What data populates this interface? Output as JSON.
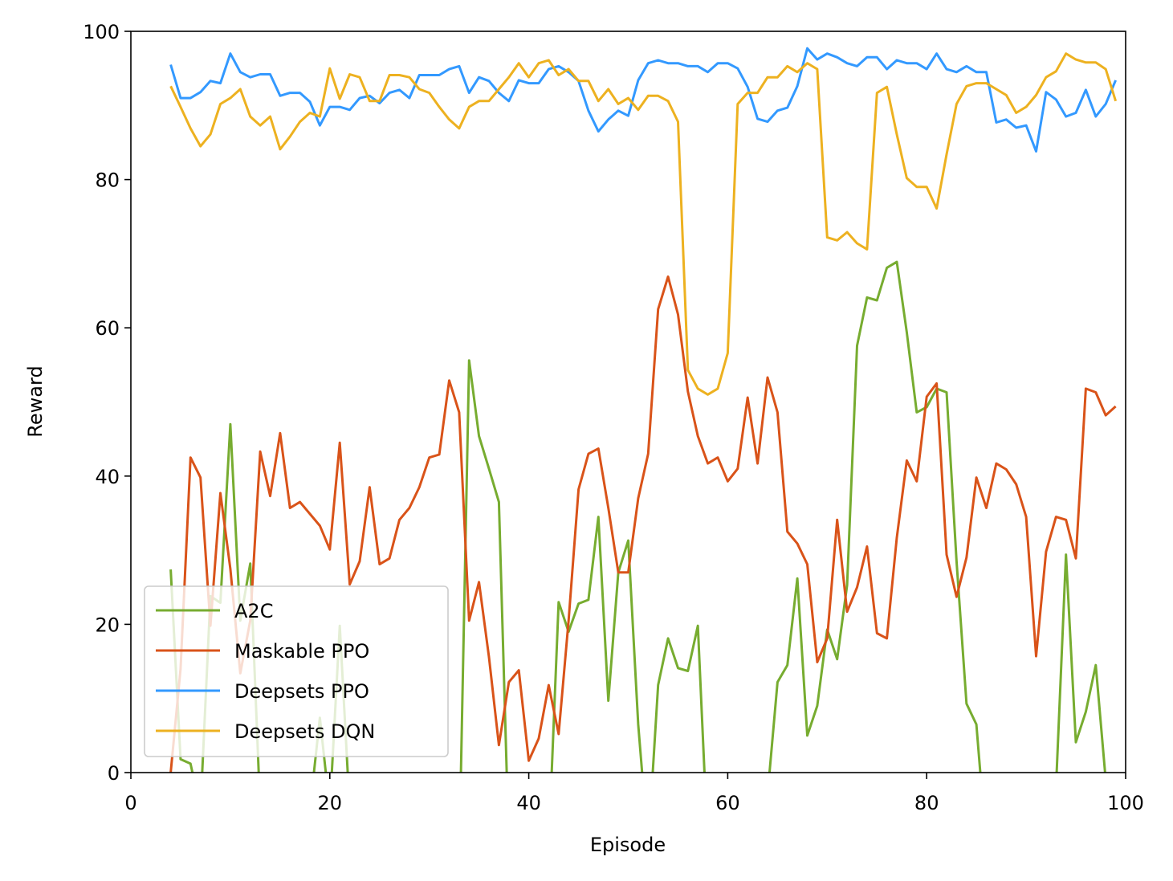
{
  "chart_data": {
    "type": "line",
    "xlabel": "Episode",
    "ylabel": "Reward",
    "xlim": [
      0,
      100
    ],
    "ylim": [
      0,
      100
    ],
    "xticks": [
      0,
      20,
      40,
      60,
      80,
      100
    ],
    "yticks": [
      0,
      20,
      40,
      60,
      80,
      100
    ],
    "legend": "lower left",
    "x": [
      4,
      5,
      6,
      7,
      8,
      9,
      10,
      11,
      12,
      13,
      14,
      15,
      16,
      17,
      18,
      19,
      20,
      21,
      22,
      23,
      24,
      25,
      26,
      27,
      28,
      29,
      30,
      31,
      32,
      33,
      34,
      35,
      36,
      37,
      38,
      39,
      40,
      41,
      42,
      43,
      44,
      45,
      46,
      47,
      48,
      49,
      50,
      51,
      52,
      53,
      54,
      55,
      56,
      57,
      58,
      59,
      60,
      61,
      62,
      63,
      64,
      65,
      66,
      67,
      68,
      69,
      70,
      71,
      72,
      73,
      74,
      75,
      76,
      77,
      78,
      79,
      80,
      81,
      82,
      83,
      84,
      85,
      86,
      87,
      88,
      89,
      90,
      91,
      92,
      93,
      94,
      95,
      96,
      97,
      98,
      99
    ],
    "series": [
      {
        "name": "A2C",
        "color": "#77ac30",
        "values": [
          27.4,
          1.8,
          1.2,
          -5,
          23.8,
          22.9,
          47,
          20.5,
          28.2,
          -5,
          -5,
          -5,
          -5,
          -5,
          -5,
          7.4,
          -5,
          19.8,
          -5,
          -5,
          -5,
          -5,
          -5,
          -5,
          -5,
          -5,
          -5,
          -5,
          -5,
          -12,
          55.6,
          45.4,
          41,
          36.5,
          -10,
          -10,
          -10,
          -10,
          -10,
          23,
          19,
          22.8,
          23.3,
          34.5,
          9.7,
          27,
          31.3,
          6.5,
          -10,
          11.8,
          18.1,
          14.1,
          13.7,
          19.8,
          -10,
          -10,
          -10,
          -10,
          -10,
          -10,
          -3,
          12.2,
          14.5,
          26.2,
          5,
          9,
          19.3,
          15.3,
          25.3,
          57.6,
          64.1,
          63.7,
          68.1,
          68.9,
          59.4,
          48.6,
          49.3,
          51.8,
          51.3,
          28.5,
          9.3,
          6.5,
          -10,
          -10,
          -10,
          -10,
          -10,
          -10,
          -10,
          -2,
          29.4,
          4.1,
          8.2,
          14.5,
          -1,
          null
        ]
      },
      {
        "name": "Maskable PPO",
        "color": "#d95319",
        "values": [
          0,
          14,
          42.5,
          39.8,
          19.8,
          37.7,
          27.5,
          13.4,
          20.5,
          43.3,
          37.3,
          45.8,
          35.7,
          36.5,
          34.9,
          33.3,
          30.1,
          44.5,
          25.4,
          28.5,
          38.5,
          28.1,
          28.9,
          34.1,
          35.7,
          38.5,
          42.5,
          42.9,
          52.9,
          48.6,
          20.5,
          25.7,
          15.6,
          3.7,
          12.2,
          13.8,
          1.6,
          4.6,
          11.8,
          5.2,
          20.5,
          38.2,
          43,
          43.7,
          35.7,
          27,
          27,
          37,
          43,
          62.5,
          66.9,
          61.8,
          51.4,
          45.4,
          41.7,
          42.5,
          39.3,
          41,
          50.6,
          41.7,
          53.3,
          48.6,
          32.5,
          30.9,
          28.1,
          14.9,
          18.1,
          34.1,
          21.7,
          25,
          30.5,
          18.8,
          18.1,
          31.7,
          42.1,
          39.3,
          50.7,
          52.5,
          29.4,
          23.7,
          29,
          39.8,
          35.7,
          41.7,
          40.9,
          38.9,
          34.5,
          15.7,
          29.8,
          34.5,
          34.1,
          28.9,
          51.8,
          51.3,
          48.2,
          49.4
        ]
      },
      {
        "name": "Deepsets PPO",
        "color": "#3399ff",
        "values": [
          95.5,
          91,
          91,
          91.8,
          93.3,
          93,
          97,
          94.5,
          93.8,
          94.2,
          94.2,
          91.3,
          91.7,
          91.7,
          90.5,
          87.3,
          89.8,
          89.8,
          89.4,
          91,
          91.3,
          90.3,
          91.7,
          92.1,
          91,
          94.1,
          94.1,
          94.1,
          94.9,
          95.3,
          91.7,
          93.8,
          93.3,
          91.7,
          90.6,
          93.4,
          93,
          93,
          94.9,
          95.3,
          94.5,
          93.3,
          89.3,
          86.5,
          88.1,
          89.3,
          88.6,
          93.4,
          95.7,
          96.1,
          95.7,
          95.7,
          95.3,
          95.3,
          94.5,
          95.7,
          95.7,
          95,
          92.5,
          88.2,
          87.8,
          89.3,
          89.7,
          92.6,
          97.7,
          96.2,
          97,
          96.5,
          95.7,
          95.3,
          96.5,
          96.5,
          94.9,
          96.1,
          95.7,
          95.7,
          94.9,
          97,
          94.9,
          94.5,
          95.3,
          94.5,
          94.5,
          87.7,
          88.1,
          87,
          87.3,
          83.8,
          91.8,
          90.8,
          88.5,
          89,
          92.1,
          88.5,
          90.2,
          93.4
        ]
      },
      {
        "name": "Deepsets DQN",
        "color": "#edb120",
        "values": [
          92.6,
          89.8,
          86.9,
          84.5,
          86.1,
          90.2,
          91,
          92.2,
          88.5,
          87.3,
          88.5,
          84.1,
          85.8,
          87.8,
          89,
          88.5,
          95,
          90.9,
          94.2,
          93.8,
          90.6,
          90.6,
          94.1,
          94.1,
          93.8,
          92.2,
          91.7,
          89.8,
          88.1,
          86.9,
          89.8,
          90.6,
          90.6,
          92.2,
          93.8,
          95.7,
          93.8,
          95.7,
          96.1,
          94.1,
          94.9,
          93.3,
          93.3,
          90.6,
          92.2,
          90.2,
          91,
          89.4,
          91.3,
          91.3,
          90.6,
          87.8,
          54.3,
          51.8,
          51,
          51.8,
          56.6,
          90.2,
          91.7,
          91.7,
          93.8,
          93.8,
          95.3,
          94.5,
          95.7,
          94.9,
          72.2,
          71.8,
          72.9,
          71.4,
          70.6,
          91.7,
          92.5,
          86.1,
          80.2,
          79,
          79,
          76.1,
          83.4,
          90.2,
          92.6,
          93,
          93,
          92.2,
          91.4,
          89,
          89.8,
          91.4,
          93.8,
          94.6,
          97,
          96.2,
          95.8,
          95.8,
          94.9,
          90.6
        ]
      }
    ]
  }
}
